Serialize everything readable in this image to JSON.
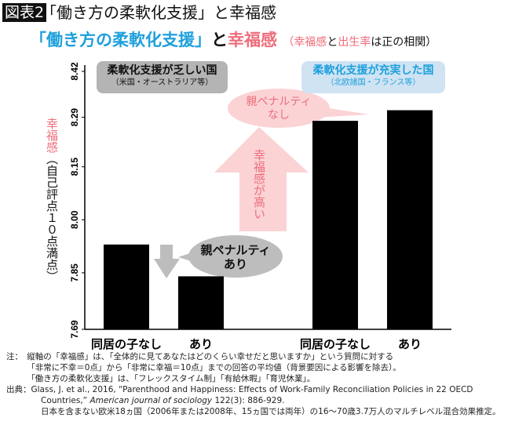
{
  "header": {
    "fig_tag": "図表2",
    "title": "「働き方の柔軟化支援」と幸福感"
  },
  "subtitle": {
    "part1": "「働き方の柔軟化支援」",
    "part2": "と",
    "part3": "幸福感",
    "paren_open": "（",
    "paren_pink1": "幸福感",
    "paren_and": "と",
    "paren_pink2": "出生率",
    "paren_rest": "は正の相関）"
  },
  "colors": {
    "blue": "#1ea0dc",
    "pink": "#ee6d7a",
    "bar": "#000000",
    "gray_box": "#b4b4b4",
    "blue_box": "#cfe3f3",
    "pink_shape": "#fbd3d5",
    "gray_shape": "#bdbdbd"
  },
  "annotations": {
    "weak_group": {
      "title": "柔軟化支援が乏しい国",
      "sub": "（米国・オーストラリア等）"
    },
    "strong_group": {
      "title": "柔軟化支援が充実した国",
      "sub": "（北欧諸国・フランス等）"
    },
    "no_penalty": {
      "line1": "親ペナルティ",
      "line2": "なし"
    },
    "penalty": {
      "line1": "親ペナルティ",
      "line2": "あり"
    },
    "higher": "幸福感が高い"
  },
  "chart_data": {
    "type": "bar",
    "ylabel_pink": "幸福感",
    "ylabel_rest": "（自己評点１０点満点）",
    "ylim": [
      7.69,
      8.42
    ],
    "yticks": [
      "8.42",
      "8.29",
      "8.15",
      "8.00",
      "7.85",
      "7.69"
    ],
    "ytick_values": [
      8.42,
      8.29,
      8.15,
      8.0,
      7.85,
      7.69
    ],
    "categories": [
      "同居の子なし",
      "あり",
      "同居の子なし",
      "あり"
    ],
    "values": [
      7.93,
      7.84,
      8.28,
      8.31
    ],
    "grid": false
  },
  "notes": [
    "注：　縦軸の「幸福感」は、「全体的に見てあなたはどのくらい幸せだと思いますか」という質問に対する",
    "　　　「非常に不幸＝0点」から「非常に幸福＝10点」までの回答の平均値（背景要因による影響を除去）。",
    "　　　「働き方の柔軟化支援」は、「フレックスタイム制」「有給休暇」「育児休業」。"
  ],
  "source": {
    "label": "出典：",
    "line1": "Glass, J. et al., 2016, “Parenthood and Happiness: Effects of Work-Family Reconciliation Policies in 22 OECD",
    "line2a": "Countries,”",
    "line2b": "American journal of sociology",
    "line2c": " 122(3): 886-929.",
    "line3": "日本を含まない欧米18ヵ国（2006年または2008年、15ヵ国では両年）の16～70歳3.7万人のマルチレベル混合効果推定。"
  }
}
